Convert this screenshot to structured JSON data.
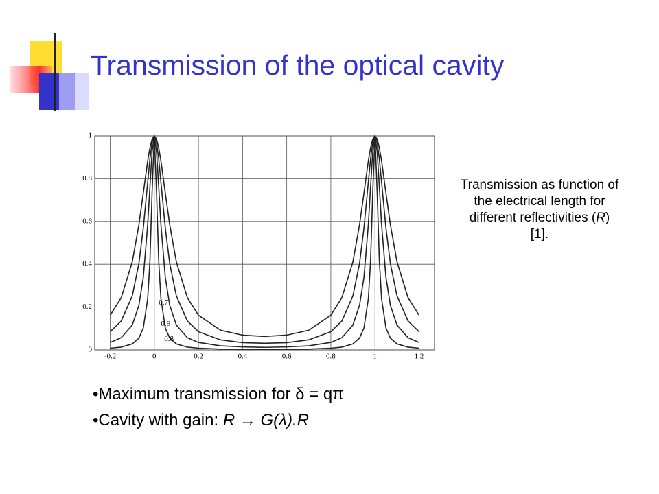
{
  "title": "Transmission of the optical cavity",
  "caption": [
    "Transmission as function of the electrical length for different reflectivities (",
    "R",
    ") [1]."
  ],
  "bullets": [
    [
      "Maximum transmission for δ = qπ"
    ],
    [
      "Cavity with gain: ",
      "R → G(λ).R"
    ]
  ],
  "chart_data": {
    "type": "line",
    "x": [
      -0.2,
      -0.15,
      -0.1,
      -0.07,
      -0.05,
      -0.03,
      -0.02,
      -0.01,
      0,
      0.01,
      0.02,
      0.03,
      0.05,
      0.07,
      0.1,
      0.15,
      0.2,
      0.3,
      0.4,
      0.5,
      0.6,
      0.7,
      0.8,
      0.85,
      0.9,
      0.93,
      0.95,
      0.97,
      0.98,
      0.99,
      1,
      1.01,
      1.02,
      1.03,
      1.05,
      1.07,
      1.1,
      1.15,
      1.2
    ],
    "series": [
      {
        "name": "0.9",
        "color": "#222222",
        "values": [
          0.008,
          0.013,
          0.028,
          0.055,
          0.102,
          0.239,
          0.413,
          0.738,
          1,
          0.738,
          0.413,
          0.239,
          0.102,
          0.055,
          0.028,
          0.013,
          0.008,
          0.004,
          0.003,
          0.003,
          0.003,
          0.004,
          0.008,
          0.013,
          0.028,
          0.055,
          0.102,
          0.239,
          0.413,
          0.738,
          1,
          0.738,
          0.413,
          0.239,
          0.102,
          0.055,
          0.028,
          0.013,
          0.008
        ]
      },
      {
        "name": "0.8",
        "color": "#222222",
        "values": [
          0.035,
          0.057,
          0.116,
          0.208,
          0.338,
          0.585,
          0.76,
          0.927,
          1,
          0.927,
          0.76,
          0.585,
          0.338,
          0.208,
          0.116,
          0.057,
          0.035,
          0.019,
          0.014,
          0.012,
          0.014,
          0.019,
          0.035,
          0.057,
          0.116,
          0.208,
          0.338,
          0.585,
          0.76,
          0.927,
          1,
          0.927,
          0.76,
          0.585,
          0.338,
          0.208,
          0.116,
          0.057,
          0.035
        ]
      },
      {
        "name": "0.7",
        "color": "#222222",
        "values": [
          0.085,
          0.135,
          0.252,
          0.403,
          0.568,
          0.784,
          0.891,
          0.97,
          1,
          0.97,
          0.891,
          0.784,
          0.568,
          0.403,
          0.252,
          0.135,
          0.085,
          0.047,
          0.034,
          0.031,
          0.034,
          0.047,
          0.085,
          0.135,
          0.252,
          0.403,
          0.568,
          0.784,
          0.891,
          0.97,
          1,
          0.97,
          0.891,
          0.784,
          0.568,
          0.403,
          0.252,
          0.135,
          0.085
        ]
      },
      {
        "color": "#222222",
        "values": [
          0.162,
          0.244,
          0.411,
          0.584,
          0.732,
          0.883,
          0.944,
          0.985,
          1,
          0.985,
          0.944,
          0.883,
          0.732,
          0.584,
          0.411,
          0.244,
          0.162,
          0.092,
          0.069,
          0.063,
          0.069,
          0.092,
          0.162,
          0.244,
          0.411,
          0.584,
          0.732,
          0.883,
          0.944,
          0.985,
          1,
          0.985,
          0.944,
          0.883,
          0.732,
          0.584,
          0.411,
          0.244,
          0.162
        ]
      }
    ],
    "xlim": [
      -0.27,
      1.27
    ],
    "ylim": [
      0,
      1
    ],
    "xticks": [
      -0.2,
      0,
      0.2,
      0.4,
      0.6,
      0.8,
      1,
      1.2
    ],
    "yticks": [
      0,
      0.2,
      0.4,
      0.6,
      0.8,
      1
    ],
    "grid": true
  }
}
